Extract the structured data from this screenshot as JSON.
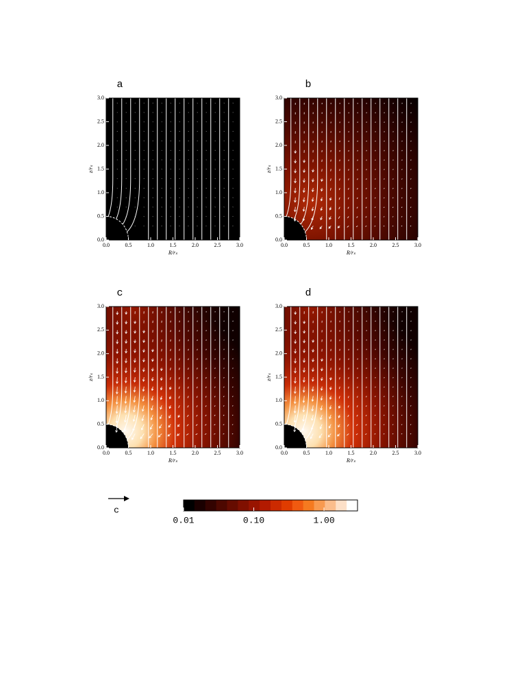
{
  "chart_data": [
    {
      "type": "field",
      "title": "a",
      "x_label": "R/rₛ",
      "y_label": "z/rₛ",
      "xlim": [
        0,
        3
      ],
      "ylim": [
        0,
        3
      ],
      "xticks": [
        {
          "value": 0,
          "label": "0.0"
        },
        {
          "value": 0.5,
          "label": "0.5"
        },
        {
          "value": 1,
          "label": "1.0"
        },
        {
          "value": 1.5,
          "label": "1.5"
        },
        {
          "value": 2,
          "label": "2.0"
        },
        {
          "value": 2.5,
          "label": "2.5"
        },
        {
          "value": 3,
          "label": "3.0"
        }
      ],
      "yticks": [
        {
          "value": 0,
          "label": "0.0"
        },
        {
          "value": 0.5,
          "label": "0.5"
        },
        {
          "value": 1,
          "label": "1.0"
        },
        {
          "value": 1.5,
          "label": "1.5"
        },
        {
          "value": 2,
          "label": "2.0"
        },
        {
          "value": 2.5,
          "label": "2.5"
        },
        {
          "value": 3,
          "label": "3.0"
        }
      ]
    },
    {
      "type": "field",
      "title": "b",
      "x_label": "R/rₛ",
      "y_label": "z/rₛ",
      "xlim": [
        0,
        3
      ],
      "ylim": [
        0,
        3
      ],
      "xticks": [
        {
          "value": 0,
          "label": "0.0"
        },
        {
          "value": 0.5,
          "label": "0.5"
        },
        {
          "value": 1,
          "label": "1.0"
        },
        {
          "value": 1.5,
          "label": "1.5"
        },
        {
          "value": 2,
          "label": "2.0"
        },
        {
          "value": 2.5,
          "label": "2.5"
        },
        {
          "value": 3,
          "label": "3.0"
        }
      ],
      "yticks": [
        {
          "value": 0,
          "label": "0.0"
        },
        {
          "value": 0.5,
          "label": "0.5"
        },
        {
          "value": 1,
          "label": "1.0"
        },
        {
          "value": 1.5,
          "label": "1.5"
        },
        {
          "value": 2,
          "label": "2.0"
        },
        {
          "value": 2.5,
          "label": "2.5"
        },
        {
          "value": 3,
          "label": "3.0"
        }
      ]
    },
    {
      "type": "field",
      "title": "c",
      "x_label": "R/rₛ",
      "y_label": "z/rₛ",
      "xlim": [
        0,
        3
      ],
      "ylim": [
        0,
        3
      ],
      "xticks": [
        {
          "value": 0,
          "label": "0.0"
        },
        {
          "value": 0.5,
          "label": "0.5"
        },
        {
          "value": 1,
          "label": "1.0"
        },
        {
          "value": 1.5,
          "label": "1.5"
        },
        {
          "value": 2,
          "label": "2.0"
        },
        {
          "value": 2.5,
          "label": "2.5"
        },
        {
          "value": 3,
          "label": "3.0"
        }
      ],
      "yticks": [
        {
          "value": 0,
          "label": "0.0"
        },
        {
          "value": 0.5,
          "label": "0.5"
        },
        {
          "value": 1,
          "label": "1.0"
        },
        {
          "value": 1.5,
          "label": "1.5"
        },
        {
          "value": 2,
          "label": "2.0"
        },
        {
          "value": 2.5,
          "label": "2.5"
        },
        {
          "value": 3,
          "label": "3.0"
        }
      ]
    },
    {
      "type": "field",
      "title": "d",
      "x_label": "R/rₛ",
      "y_label": "z/rₛ",
      "xlim": [
        0,
        3
      ],
      "ylim": [
        0,
        3
      ],
      "xticks": [
        {
          "value": 0,
          "label": "0.0"
        },
        {
          "value": 0.5,
          "label": "0.5"
        },
        {
          "value": 1,
          "label": "1.0"
        },
        {
          "value": 1.5,
          "label": "1.5"
        },
        {
          "value": 2,
          "label": "2.0"
        },
        {
          "value": 2.5,
          "label": "2.5"
        },
        {
          "value": 3,
          "label": "3.0"
        }
      ],
      "yticks": [
        {
          "value": 0,
          "label": "0.0"
        },
        {
          "value": 0.5,
          "label": "0.5"
        },
        {
          "value": 1,
          "label": "1.0"
        },
        {
          "value": 1.5,
          "label": "1.5"
        },
        {
          "value": 2,
          "label": "2.0"
        },
        {
          "value": 2.5,
          "label": "2.5"
        },
        {
          "value": 3,
          "label": "3.0"
        }
      ]
    },
    {
      "type": "colorbar",
      "clim": [
        0.01,
        3
      ],
      "log_scale": true,
      "cticks": [
        0.01,
        {
          "value": 0.1,
          "label": "0.10"
        },
        {
          "value": 1,
          "label": "1.00"
        }
      ],
      "colors": [
        "#000000",
        "#1a0000",
        "#330300",
        "#4d0800",
        "#660c00",
        "#801000",
        "#991400",
        "#b31a00",
        "#cc2a00",
        "#e03c00",
        "#f05a10",
        "#f57a20",
        "#f89a50",
        "#fbbd8c",
        "#fde0c8",
        "#ffffff"
      ],
      "arrow_label": "c"
    }
  ]
}
